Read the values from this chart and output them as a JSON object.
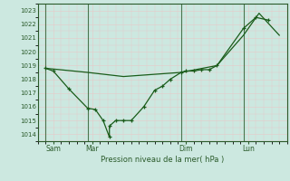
{
  "xlabel": "Pression niveau de la mer( hPa )",
  "background_color": "#cce8e0",
  "plot_bg_color": "#cce8e0",
  "grid_color": "#e8c8c8",
  "line_color": "#1a5c1a",
  "vline_color": "#2a5a2a",
  "ylim": [
    1013.5,
    1023.5
  ],
  "yticks": [
    1014,
    1015,
    1016,
    1017,
    1018,
    1019,
    1020,
    1021,
    1022,
    1023
  ],
  "xlim": [
    0,
    16
  ],
  "xtick_positions": [
    1.0,
    3.5,
    9.5,
    13.5
  ],
  "xtick_labels": [
    "Sam",
    "Mar",
    "Dim",
    "Lun"
  ],
  "vline_positions": [
    0.5,
    3.2,
    9.2,
    13.2
  ],
  "line1_x": [
    0.5,
    1.0,
    2.0,
    3.2,
    3.7,
    4.2,
    4.6,
    4.6,
    5.0,
    5.5,
    6.0,
    6.8,
    7.5,
    8.0,
    8.5,
    9.2,
    9.5,
    10.0,
    10.5,
    11.0,
    11.5,
    13.2,
    14.0,
    14.8
  ],
  "line1_y": [
    1018.8,
    1018.6,
    1017.3,
    1015.9,
    1015.8,
    1015.0,
    1013.8,
    1014.6,
    1015.0,
    1015.0,
    1015.0,
    1016.0,
    1017.2,
    1017.5,
    1018.0,
    1018.5,
    1018.6,
    1018.6,
    1018.7,
    1018.7,
    1019.0,
    1021.7,
    1022.5,
    1022.3
  ],
  "line2_x": [
    0.5,
    3.2,
    5.5,
    9.2,
    11.5,
    13.2,
    14.2,
    15.5
  ],
  "line2_y": [
    1018.8,
    1018.5,
    1018.2,
    1018.5,
    1019.0,
    1021.2,
    1022.8,
    1021.2
  ],
  "figsize": [
    3.2,
    2.0
  ],
  "dpi": 100
}
